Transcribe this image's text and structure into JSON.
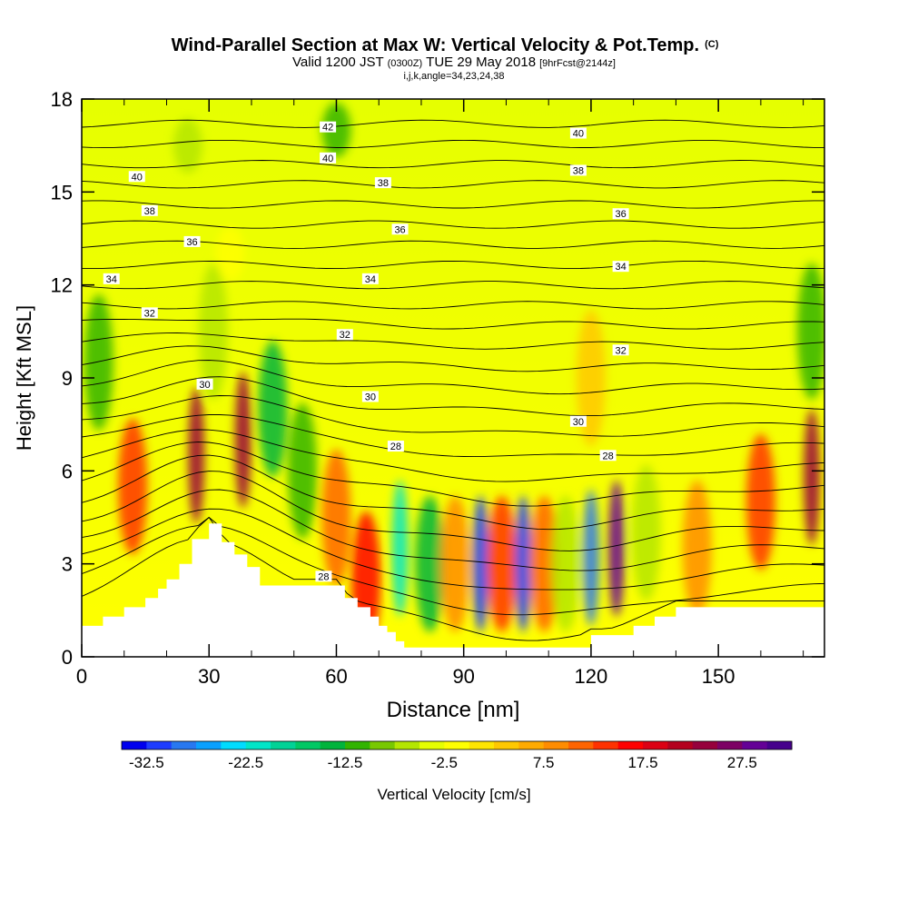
{
  "title": {
    "main": "Wind-Parallel Section at Max W: Vertical Velocity & Pot.Temp.",
    "copyright": "(C)",
    "line2_prefix": "Valid 1200 JST",
    "line2_utc": "(0300Z)",
    "line2_date": "TUE 29 May 2018",
    "line2_run": "[9hrFcst@2144z]",
    "line3": "i,j,k,angle=34,23,24,38"
  },
  "colors": {
    "terrain": "#ffffff",
    "background_field": "#ffff00",
    "contour": "#000000"
  },
  "chart_data": {
    "type": "heatmap",
    "title": "Wind-Parallel Section at Max W: Vertical Velocity & Pot.Temp.",
    "xlabel": "Distance [nm]",
    "ylabel": "Height [Kft MSL]",
    "xlim": [
      0,
      175
    ],
    "ylim": [
      0,
      18
    ],
    "x_ticks": [
      "0",
      "30",
      "60",
      "90",
      "120",
      "150"
    ],
    "x_tick_values": [
      0,
      30,
      60,
      90,
      120,
      150
    ],
    "y_ticks": [
      "0",
      "3",
      "6",
      "9",
      "12",
      "15",
      "18"
    ],
    "y_tick_values": [
      0,
      3,
      6,
      9,
      12,
      15,
      18
    ],
    "colorbar": {
      "label": "Vertical Velocity [cm/s]",
      "tick_labels": [
        "-32.5",
        "-22.5",
        "-12.5",
        "-2.5",
        "7.5",
        "17.5",
        "27.5"
      ],
      "tick_values": [
        -32.5,
        -22.5,
        -12.5,
        -2.5,
        7.5,
        17.5,
        27.5
      ],
      "min": -35,
      "max": 32.5,
      "step": 2.5,
      "colors": [
        "#0000ee",
        "#1e3cff",
        "#2878f0",
        "#0aa0ff",
        "#00dcff",
        "#00e6c8",
        "#00d296",
        "#00c864",
        "#00b43c",
        "#32b400",
        "#78c800",
        "#b4e600",
        "#e6ff00",
        "#ffff00",
        "#ffe600",
        "#ffc800",
        "#ffaa00",
        "#ff8c00",
        "#ff6400",
        "#ff3200",
        "#ff0000",
        "#dc0014",
        "#b4001e",
        "#96003c",
        "#7d0064",
        "#640096",
        "#46008c"
      ]
    },
    "terrain_profile": {
      "x": [
        0,
        5,
        10,
        15,
        18,
        20,
        23,
        26,
        30,
        33,
        36,
        39,
        42,
        45,
        48,
        50,
        55,
        60,
        62,
        65,
        68,
        70,
        72,
        74,
        76,
        80,
        90,
        100,
        110,
        117,
        120,
        125,
        130,
        135,
        140,
        145,
        150,
        160,
        175
      ],
      "height": [
        1.0,
        1.3,
        1.6,
        1.9,
        2.2,
        2.5,
        3.0,
        3.8,
        4.3,
        3.7,
        3.3,
        2.9,
        2.3,
        2.3,
        2.3,
        2.3,
        2.3,
        2.3,
        1.9,
        1.6,
        1.3,
        1.0,
        0.8,
        0.5,
        0.3,
        0.3,
        0.3,
        0.3,
        0.3,
        0.3,
        0.7,
        0.7,
        1.0,
        1.3,
        1.6,
        1.6,
        1.6,
        1.6,
        1.6
      ]
    },
    "velocity_features": [
      {
        "x": 4,
        "y": 9.5,
        "value": -12.5
      },
      {
        "x": 12,
        "y": 5.5,
        "value": 12.5
      },
      {
        "x": 27,
        "y": 6.5,
        "value": 22.5
      },
      {
        "x": 31,
        "y": 10.5,
        "value": -7.5
      },
      {
        "x": 38,
        "y": 7.0,
        "value": 22.5
      },
      {
        "x": 45,
        "y": 8.0,
        "value": -15
      },
      {
        "x": 52,
        "y": 6.0,
        "value": -12.5
      },
      {
        "x": 60,
        "y": 4.5,
        "value": 10
      },
      {
        "x": 67,
        "y": 2.5,
        "value": 15
      },
      {
        "x": 75,
        "y": 3.5,
        "value": -22.5
      },
      {
        "x": 82,
        "y": 3.0,
        "value": -15
      },
      {
        "x": 88,
        "y": 3.0,
        "value": 7.5
      },
      {
        "x": 94,
        "y": 3.0,
        "value": -32.5
      },
      {
        "x": 99,
        "y": 3.0,
        "value": 12.5
      },
      {
        "x": 104,
        "y": 3.0,
        "value": -32.5
      },
      {
        "x": 109,
        "y": 3.0,
        "value": 10
      },
      {
        "x": 114,
        "y": 3.0,
        "value": -7.5
      },
      {
        "x": 120,
        "y": 3.2,
        "value": -30
      },
      {
        "x": 126,
        "y": 3.5,
        "value": 27.5
      },
      {
        "x": 133,
        "y": 4.0,
        "value": -7.5
      },
      {
        "x": 145,
        "y": 3.5,
        "value": 7.5
      },
      {
        "x": 160,
        "y": 5.0,
        "value": 12.5
      },
      {
        "x": 172,
        "y": 5.8,
        "value": 22.5
      },
      {
        "x": 60,
        "y": 17.0,
        "value": -12.5
      },
      {
        "x": 25,
        "y": 16.5,
        "value": -7.5
      },
      {
        "x": 172,
        "y": 10.5,
        "value": -12.5
      },
      {
        "x": 35,
        "y": 13.0,
        "value": -2.5
      },
      {
        "x": 120,
        "y": 9.0,
        "value": 2.5
      }
    ],
    "contour_labels": [
      {
        "text": "42",
        "x": 58,
        "y": 17.1
      },
      {
        "text": "40",
        "x": 58,
        "y": 16.1
      },
      {
        "text": "40",
        "x": 13,
        "y": 15.5
      },
      {
        "text": "40",
        "x": 117,
        "y": 16.9
      },
      {
        "text": "38",
        "x": 16,
        "y": 14.4
      },
      {
        "text": "38",
        "x": 71,
        "y": 15.3
      },
      {
        "text": "38",
        "x": 117,
        "y": 15.7
      },
      {
        "text": "36",
        "x": 26,
        "y": 13.4
      },
      {
        "text": "36",
        "x": 75,
        "y": 13.8
      },
      {
        "text": "36",
        "x": 127,
        "y": 14.3
      },
      {
        "text": "34",
        "x": 7,
        "y": 12.2
      },
      {
        "text": "34",
        "x": 68,
        "y": 12.2
      },
      {
        "text": "34",
        "x": 127,
        "y": 12.6
      },
      {
        "text": "32",
        "x": 16,
        "y": 11.1
      },
      {
        "text": "32",
        "x": 62,
        "y": 10.4
      },
      {
        "text": "32",
        "x": 127,
        "y": 9.9
      },
      {
        "text": "30",
        "x": 29,
        "y": 8.8
      },
      {
        "text": "30",
        "x": 68,
        "y": 8.4
      },
      {
        "text": "30",
        "x": 117,
        "y": 7.6
      },
      {
        "text": "28",
        "x": 74,
        "y": 6.8
      },
      {
        "text": "28",
        "x": 124,
        "y": 6.5
      },
      {
        "text": "28",
        "x": 57,
        "y": 2.6
      }
    ]
  }
}
